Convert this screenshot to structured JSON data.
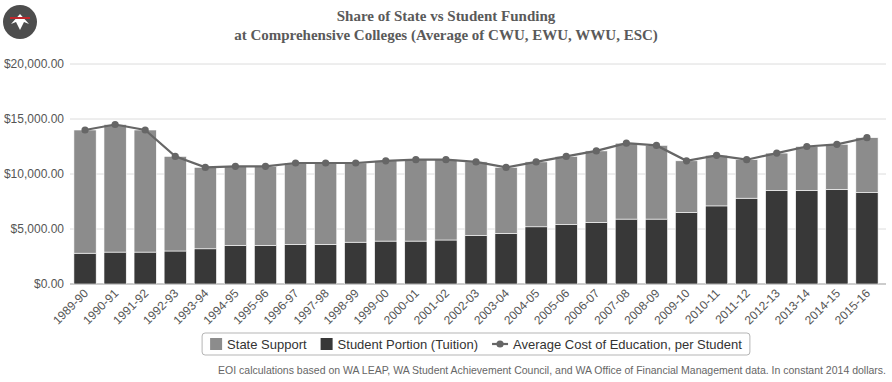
{
  "chart_data": {
    "type": "bar",
    "title": "Share of State vs Student Funding",
    "subtitle": "at Comprehensive Colleges (Average of CWU, EWU, WWU, ESC)",
    "annotations": [
      "EOI calculations based on WA LEAP, WA Student Achievement Council, and WA Office of Financial Management data. In constant 2014 dollars."
    ],
    "categories": [
      "1989-90",
      "1990-91",
      "1991-92",
      "1992-93",
      "1993-94",
      "1994-95",
      "1995-96",
      "1996-97",
      "1997-98",
      "1998-99",
      "1999-00",
      "2000-01",
      "2001-02",
      "2002-03",
      "2003-04",
      "2004-05",
      "2005-06",
      "2006-07",
      "2007-08",
      "2008-09",
      "2009-10",
      "2010-11",
      "2011-12",
      "2012-13",
      "2013-14",
      "2014-15",
      "2015-16"
    ],
    "series": [
      {
        "name": "State Support",
        "type": "bar",
        "color": "#8c8c8c",
        "values": [
          11200,
          11600,
          11100,
          8600,
          7400,
          7200,
          7200,
          7400,
          7400,
          7200,
          7300,
          7400,
          7300,
          6700,
          6000,
          5900,
          6200,
          6500,
          6900,
          6700,
          4700,
          4600,
          3500,
          3400,
          4000,
          4100,
          5000
        ]
      },
      {
        "name": "Student Portion (Tuition)",
        "type": "bar",
        "color": "#383838",
        "values": [
          2800,
          2900,
          2900,
          3000,
          3200,
          3500,
          3500,
          3600,
          3600,
          3800,
          3900,
          3900,
          4000,
          4400,
          4600,
          5200,
          5400,
          5600,
          5900,
          5900,
          6500,
          7100,
          7800,
          8500,
          8500,
          8600,
          8300
        ]
      },
      {
        "name": "Average Cost of Education, per Student",
        "type": "line",
        "color": "#666666",
        "marker": "circle",
        "values": [
          14000,
          14500,
          14000,
          11600,
          10600,
          10700,
          10700,
          11000,
          11000,
          11000,
          11200,
          11300,
          11300,
          11100,
          10600,
          11100,
          11600,
          12100,
          12800,
          12600,
          11200,
          11700,
          11300,
          11900,
          12500,
          12700,
          13300
        ]
      }
    ],
    "stacked": true,
    "grid": true,
    "legend": "bottom",
    "ylim": [
      0,
      20000
    ],
    "yticks": [
      {
        "value": 0,
        "label": "$0.00"
      },
      {
        "value": 5000,
        "label": "$5,000.00"
      },
      {
        "value": 10000,
        "label": "$10,000.00"
      },
      {
        "value": 15000,
        "label": "$15,000.00"
      },
      {
        "value": 20000,
        "label": "$20,000.00"
      }
    ]
  }
}
